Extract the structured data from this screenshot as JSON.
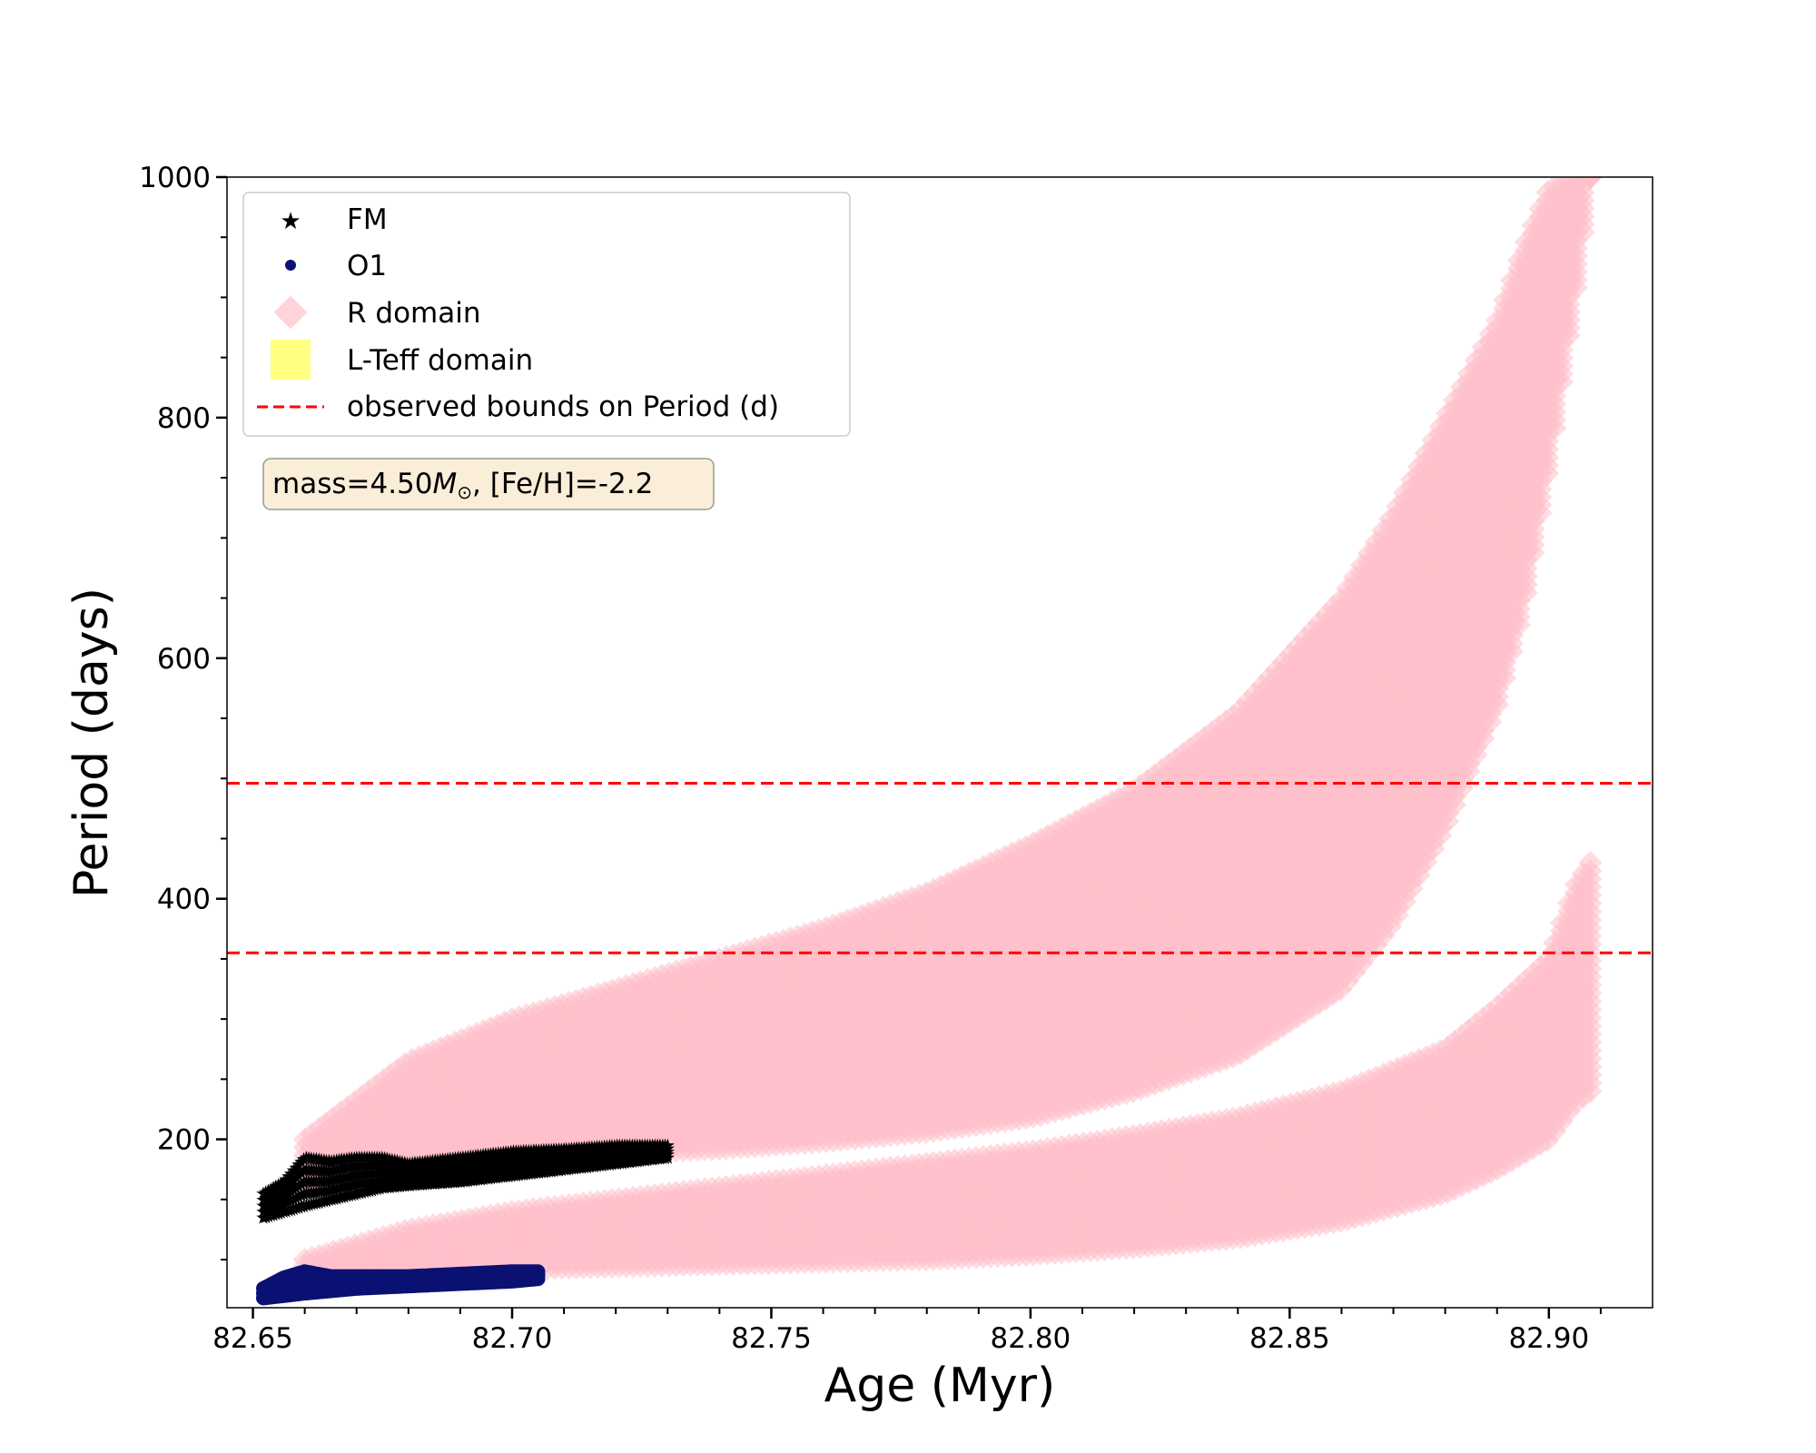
{
  "chart_data": {
    "type": "scatter",
    "xlabel": "Age (Myr)",
    "ylabel": "Period (days)",
    "xlim": [
      82.645,
      82.92
    ],
    "ylim": [
      60,
      1000
    ],
    "xticks": [
      82.65,
      82.7,
      82.75,
      82.8,
      82.85,
      82.9
    ],
    "xtick_labels": [
      "82.65",
      "82.70",
      "82.75",
      "82.80",
      "82.85",
      "82.90"
    ],
    "yticks": [
      200,
      400,
      600,
      800,
      1000
    ],
    "ytick_labels": [
      "200",
      "400",
      "600",
      "800",
      "1000"
    ],
    "grid": false,
    "legend_position": "top-left",
    "annotation": {
      "prefix": "mass=4.50",
      "symbol": "M",
      "subscript": "⊙",
      "suffix": ", [Fe/H]=-2.2"
    },
    "series": [
      {
        "name": "FM",
        "marker": "star",
        "color": "#000000",
        "x": [
          82.652,
          82.656,
          82.66,
          82.665,
          82.67,
          82.675,
          82.68,
          82.69,
          82.7,
          82.71,
          82.72,
          82.73
        ],
        "y_low": [
          135,
          140,
          145,
          150,
          155,
          160,
          162,
          165,
          170,
          175,
          180,
          185
        ],
        "y_high": [
          155,
          165,
          185,
          182,
          185,
          185,
          180,
          185,
          190,
          192,
          195,
          195
        ]
      },
      {
        "name": "O1",
        "marker": "circle",
        "color": "#0a1172",
        "x": [
          82.652,
          82.656,
          82.66,
          82.665,
          82.67,
          82.68,
          82.69,
          82.7,
          82.705
        ],
        "y_low": [
          68,
          70,
          72,
          74,
          76,
          78,
          80,
          82,
          84
        ],
        "y_high": [
          76,
          85,
          90,
          86,
          86,
          86,
          88,
          90,
          90
        ]
      },
      {
        "name": "R domain",
        "marker": "diamond",
        "color": "#ffc0cb",
        "bands": [
          {
            "x": [
              82.66,
              82.68,
              82.7,
              82.72,
              82.74,
              82.76,
              82.78,
              82.8,
              82.82,
              82.84,
              82.86,
              82.87,
              82.88,
              82.89,
              82.895,
              82.9,
              82.905,
              82.908
            ],
            "upper": [
              200,
              265,
              300,
              325,
              350,
              375,
              405,
              445,
              490,
              555,
              650,
              720,
              800,
              880,
              940,
              990,
              1000,
              1000
            ],
            "lower": [
              160,
              180,
              185,
              188,
              192,
              198,
              206,
              218,
              240,
              270,
              325,
              380,
              460,
              560,
              640,
              760,
              900,
              1000
            ]
          },
          {
            "x": [
              82.66,
              82.68,
              82.7,
              82.72,
              82.74,
              82.76,
              82.78,
              82.8,
              82.82,
              82.84,
              82.86,
              82.88,
              82.89,
              82.9,
              82.905,
              82.908
            ],
            "upper": [
              100,
              125,
              140,
              150,
              160,
              170,
              180,
              190,
              203,
              218,
              240,
              275,
              310,
              350,
              410,
              430
            ],
            "lower": [
              85,
              90,
              92,
              94,
              96,
              98,
              100,
              104,
              110,
              118,
              132,
              155,
              175,
              200,
              230,
              240
            ]
          }
        ]
      },
      {
        "name": "L-Teff domain",
        "marker": "square",
        "color": "#ffff80",
        "x": [],
        "y": []
      },
      {
        "name": "observed bounds on Period (d)",
        "line": "dashed",
        "color": "#ff0000",
        "hlines": [
          355,
          496
        ]
      }
    ]
  }
}
